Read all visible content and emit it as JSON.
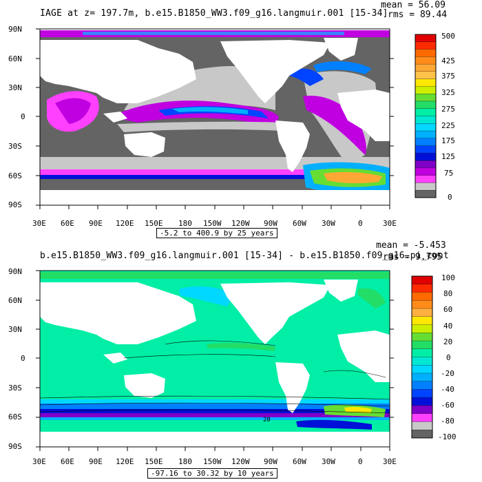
{
  "top_panel": {
    "title": "IAGE at z= 197.7m, b.e15.B1850_WW3.f09_g16.langmuir.001 [15-34]",
    "mean_label": "mean = 56.09",
    "rms_label": "rms = 89.44",
    "range_label": "-5.2 to 400.9 by 25 years",
    "colorbar_labels": [
      "500",
      "425",
      "375",
      "325",
      "275",
      "225",
      "175",
      "125",
      "75",
      "0"
    ],
    "colorbar_colors": [
      "#e00000",
      "#ff2a00",
      "#ff6a00",
      "#ff8c1a",
      "#ffa735",
      "#ffc24a",
      "#ffe800",
      "#ccee00",
      "#66dd33",
      "#22dd66",
      "#00eea6",
      "#00e8d4",
      "#00d8ff",
      "#00b0ff",
      "#0080ff",
      "#0044ff",
      "#0010d8",
      "#8000c8",
      "#c000e0",
      "#ff40ff",
      "#c8c8c8",
      "#646464"
    ]
  },
  "bottom_panel": {
    "title": "b.e15.B1850_WW3.f09_g16.langmuir.001 [15-34] - b.e15.B1850.f09_g16.pi_cont",
    "mean_label": "mean = -5.453",
    "rms_label": "rms = 9.795",
    "range_label": "-97.16 to 30.32 by 10 years",
    "colorbar_labels": [
      "100",
      "80",
      "60",
      "40",
      "20",
      "0",
      "-20",
      "-40",
      "-60",
      "-80",
      "-100"
    ],
    "colorbar_colors": [
      "#e00000",
      "#ff2a00",
      "#ff6a00",
      "#ff8c1a",
      "#ffb040",
      "#ffe800",
      "#ccee00",
      "#66dd33",
      "#22dd66",
      "#00eea6",
      "#00e8d4",
      "#00d8ff",
      "#00b0ff",
      "#0080ff",
      "#0044ff",
      "#0010d8",
      "#8000c8",
      "#ff40ff",
      "#c8c8c8",
      "#646464"
    ],
    "contour_label": "20"
  },
  "lat_labels": [
    "90N",
    "60N",
    "30N",
    "0",
    "30S",
    "60S",
    "90S"
  ],
  "lon_labels": [
    "30E",
    "60E",
    "90E",
    "120E",
    "150E",
    "180",
    "150W",
    "120W",
    "90W",
    "60W",
    "30W",
    "0",
    "30E"
  ]
}
